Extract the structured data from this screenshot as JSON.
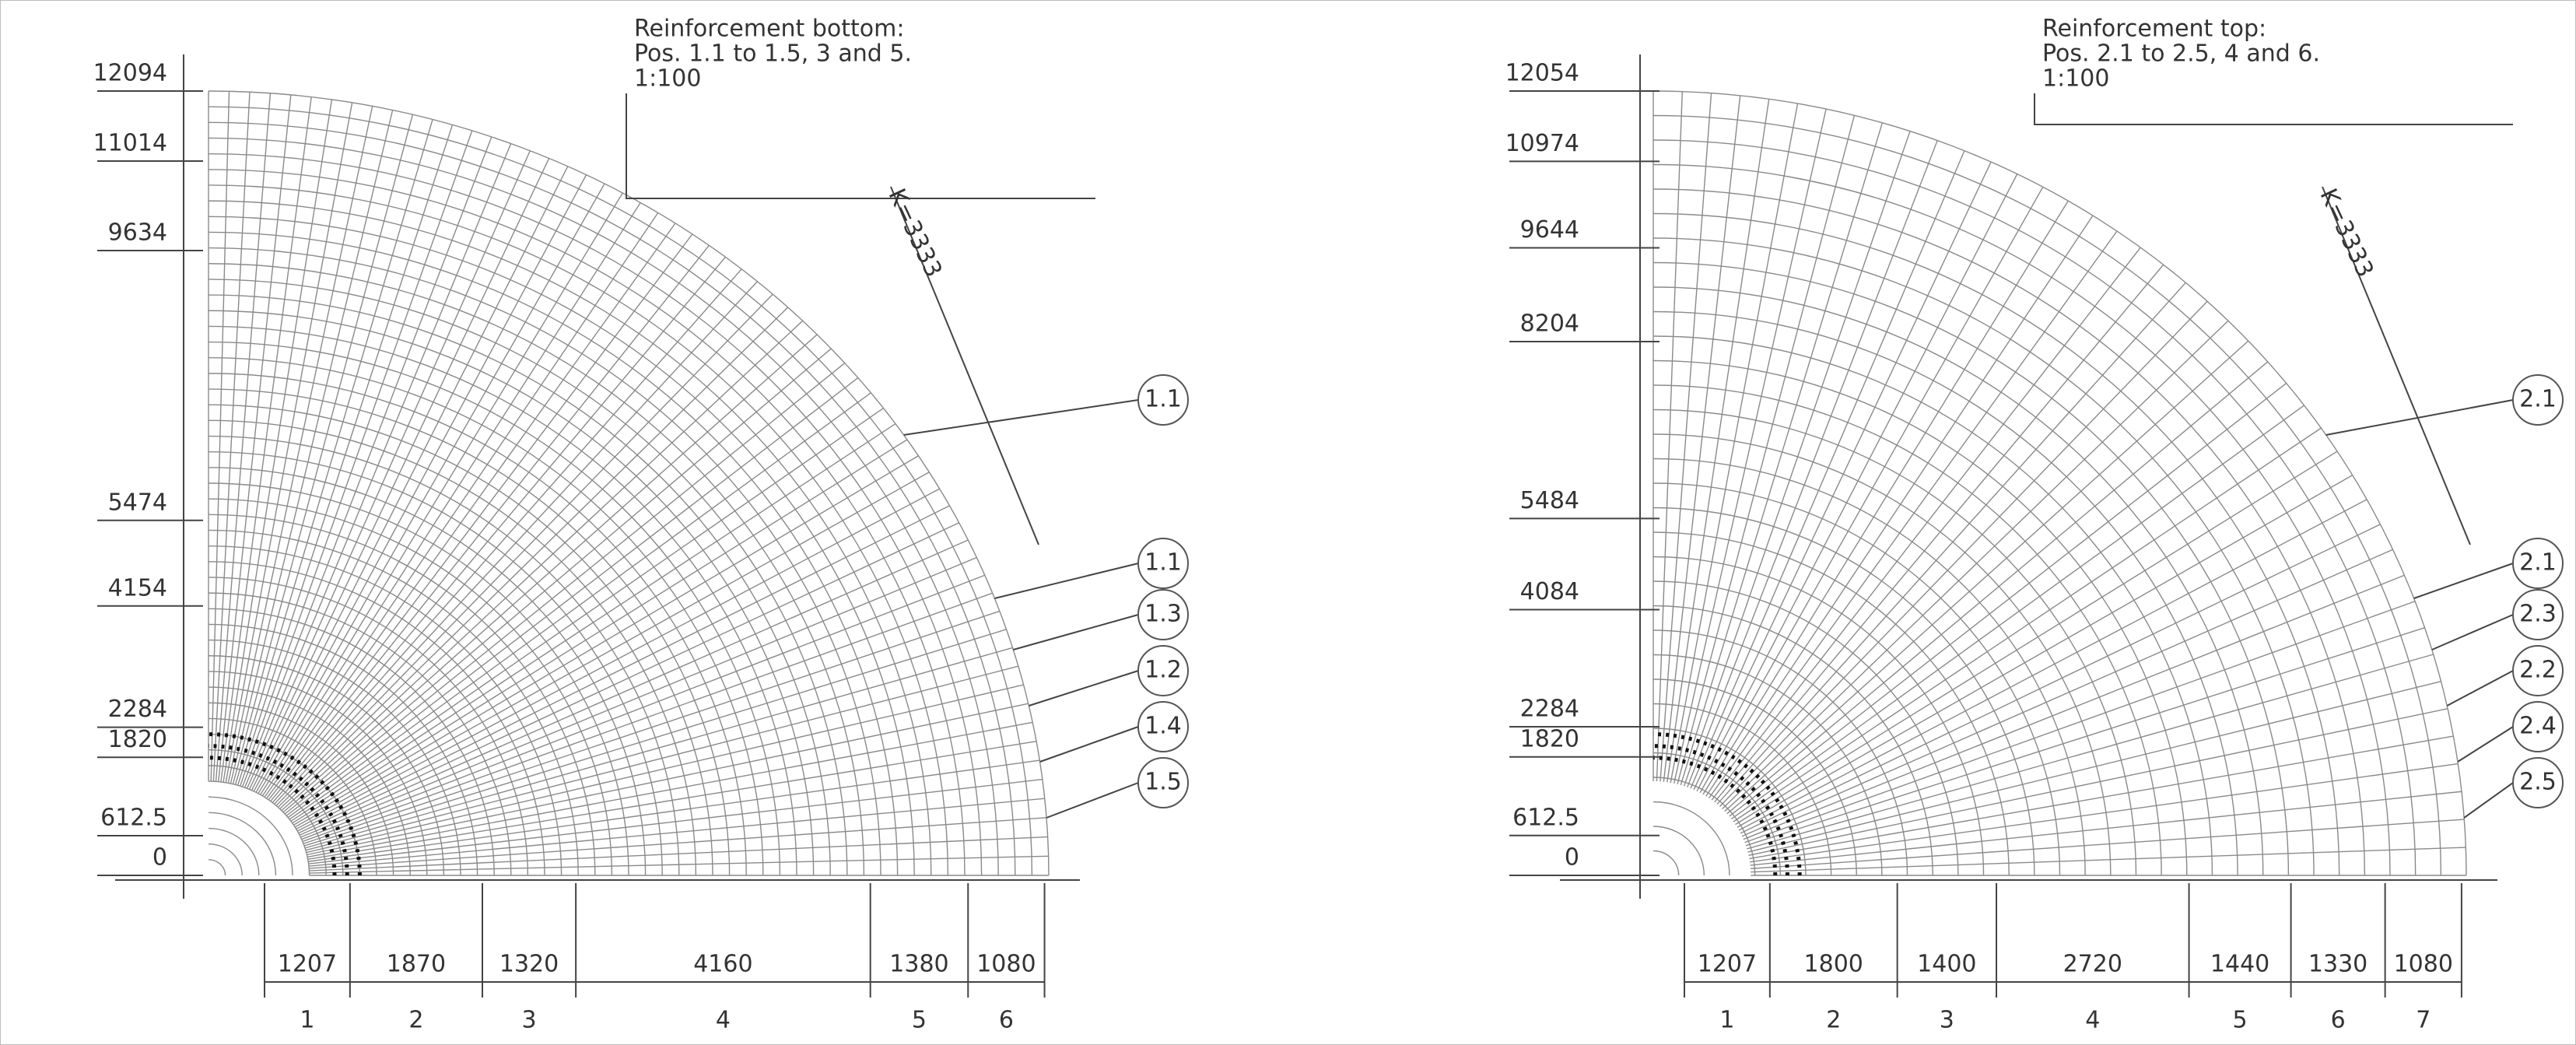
{
  "left": {
    "title": [
      "Reinforcement bottom:",
      "Pos. 1.1 to 1.5, 3 and 5.",
      "1:100"
    ],
    "vertical_dimensions": [
      12094,
      11014,
      9634,
      5474,
      4154,
      2284,
      1820,
      612.5,
      0
    ],
    "horizontal_dimensions": [
      1207,
      1870,
      1320,
      4160,
      1380,
      1080
    ],
    "zones": [
      "1",
      "2",
      "3",
      "4",
      "5",
      "6"
    ],
    "positions": [
      "1.1",
      "1.1",
      "1.3",
      "1.2",
      "1.4",
      "1.5"
    ],
    "k_label": "K=3333"
  },
  "right": {
    "title": [
      "Reinforcement top:",
      "Pos. 2.1 to 2.5, 4 and 6.",
      "1:100"
    ],
    "vertical_dimensions": [
      12054,
      10974,
      9644,
      8204,
      5484,
      4084,
      2284,
      1820,
      612.5,
      0
    ],
    "horizontal_dimensions": [
      1207,
      1800,
      1400,
      2720,
      1440,
      1330,
      1080
    ],
    "zones": [
      "1",
      "2",
      "3",
      "4",
      "5",
      "6",
      "7"
    ],
    "positions": [
      "2.1",
      "2.1",
      "2.3",
      "2.2",
      "2.4",
      "2.5"
    ],
    "k_label": "K=3333"
  }
}
